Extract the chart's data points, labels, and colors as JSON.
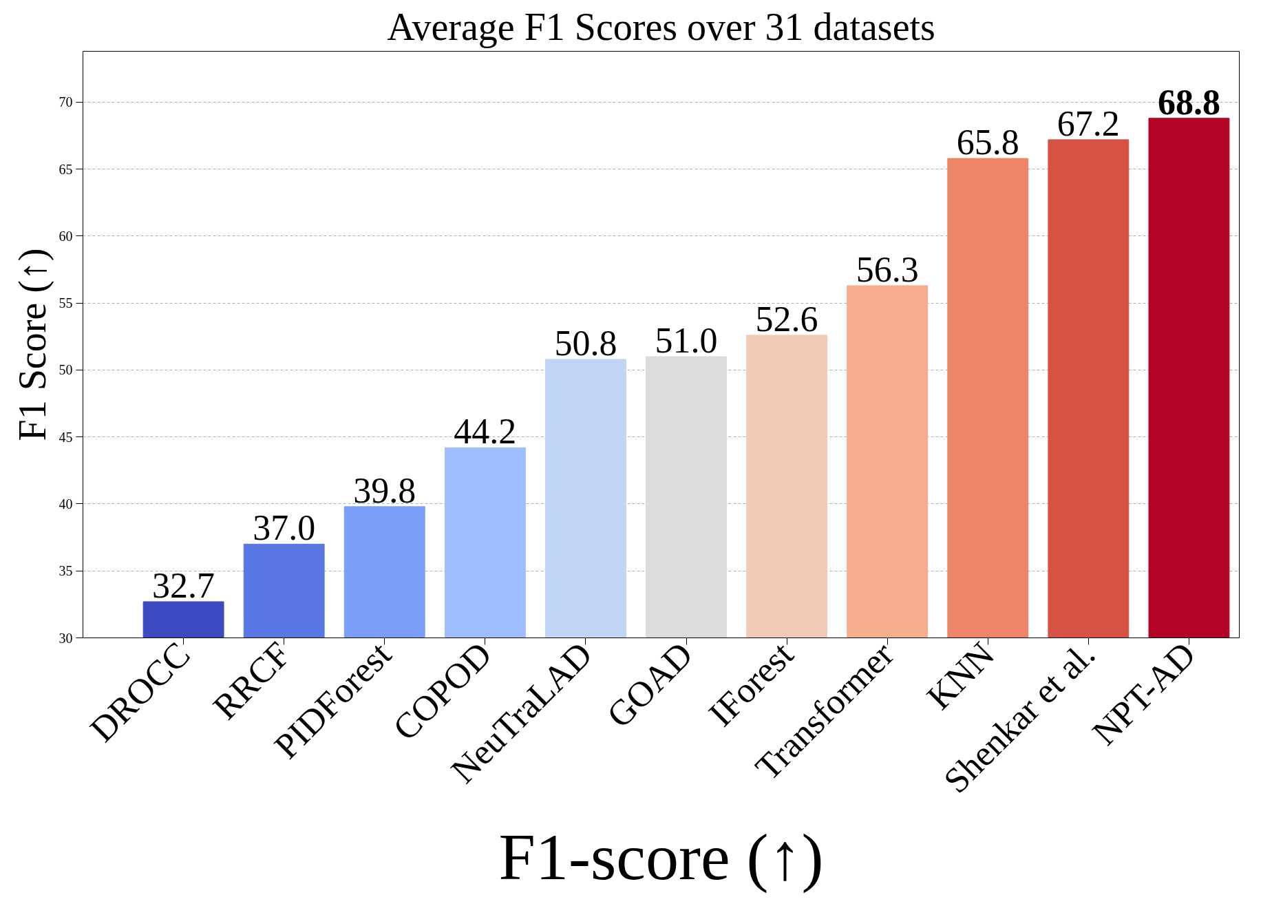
{
  "chart_data": {
    "type": "bar",
    "title": "Average F1 Scores over 31 datasets",
    "xlabel": "F1-score (↑)",
    "ylabel": "F1 Score (↑)",
    "categories": [
      "DROCC",
      "RRCF",
      "PIDForest",
      "COPOD",
      "NeuTraLAD",
      "GOAD",
      "IForest",
      "Transformer",
      "KNN",
      "Shenkar et al.",
      "NPT-AD"
    ],
    "values": [
      32.7,
      37.0,
      39.8,
      44.2,
      50.8,
      51.0,
      52.6,
      56.3,
      65.8,
      67.2,
      68.8
    ],
    "colors": [
      "#3b4cc0",
      "#5977e3",
      "#7b9ff9",
      "#9ebeff",
      "#c0d4f5",
      "#dddcdc",
      "#f2cbb7",
      "#f7ac8e",
      "#ee8468",
      "#d65244",
      "#b40426"
    ],
    "value_labels": [
      "32.7",
      "37.0",
      "39.8",
      "44.2",
      "50.8",
      "51.0",
      "52.6",
      "56.3",
      "65.8",
      "67.2",
      "68.8"
    ],
    "ylim": [
      30,
      73.8
    ],
    "yticks": [
      30,
      35,
      40,
      45,
      50,
      55,
      60,
      65,
      70
    ],
    "grid": "y"
  }
}
